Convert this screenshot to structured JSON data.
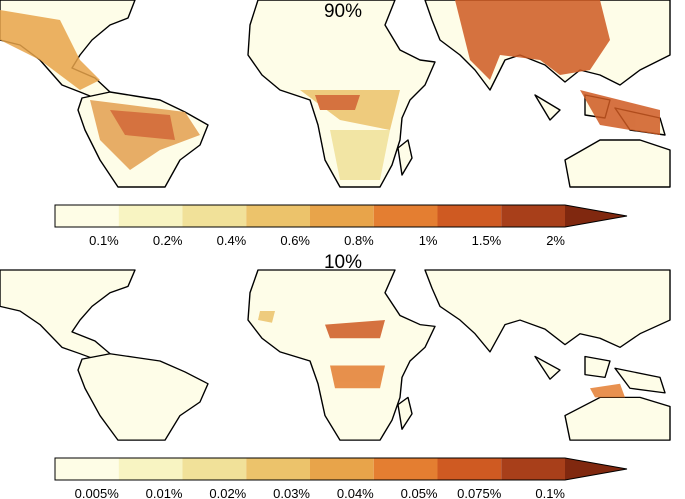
{
  "panels": [
    {
      "title": "90%",
      "colorbar": {
        "labels": [
          "0.1%",
          "0.2%",
          "0.4%",
          "0.6%",
          "0.8%",
          "1%",
          "1.5%",
          "2%"
        ]
      }
    },
    {
      "title": "10%",
      "colorbar": {
        "labels": [
          "0.005%",
          "0.01%",
          "0.02%",
          "0.03%",
          "0.04%",
          "0.05%",
          "0.075%",
          "0.1%"
        ]
      }
    }
  ],
  "colors": [
    "#fefde6",
    "#f8f4c2",
    "#f1e199",
    "#ecc36b",
    "#e8a44a",
    "#e47e31",
    "#cf5a22",
    "#a83f1a",
    "#80280f"
  ]
}
